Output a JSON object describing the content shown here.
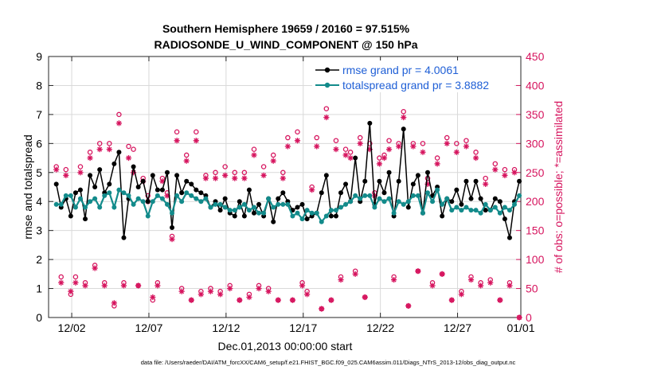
{
  "chart_data": {
    "type": "line",
    "title": "Southern Hemisphere 19659 / 20160 = 97.515%",
    "subtitle": "RADIOSONDE_U_WIND_COMPONENT @ 150 hPa",
    "xlabel": "Dec.01,2013 00:00:00 start",
    "ylabel_left": "rmse and totalspread",
    "ylabel_right": "# of obs: o=possible; *=assimilated",
    "footer": "data file: /Users/raeder/DAI/ATM_forcXX/CAM6_setup/f.e21.FHIST_BGC.f09_025.CAM6assim.011/Diags_NTrS_2013-12/obs_diag_output.nc",
    "xlim": [
      0.5,
      31.1
    ],
    "ylim_left": [
      0,
      9
    ],
    "ylim_right": [
      0,
      450
    ],
    "x_tick_values": [
      2,
      7,
      12,
      17,
      22,
      27,
      32
    ],
    "x_tick_labels": [
      "12/02",
      "12/07",
      "12/12",
      "12/17",
      "12/22",
      "12/27",
      "01/01"
    ],
    "y_left_ticks": [
      0,
      1,
      2,
      3,
      4,
      5,
      6,
      7,
      8,
      9
    ],
    "y_right_ticks": [
      0,
      50,
      100,
      150,
      200,
      250,
      300,
      350,
      400,
      450
    ],
    "series": [
      {
        "name": "rmse grand pr = 4.0061",
        "axis": "left",
        "color": "#000000",
        "marker": "filled-circle",
        "values": [
          4.6,
          3.8,
          4.1,
          3.5,
          4.3,
          4.4,
          3.4,
          4.9,
          4.5,
          5.1,
          4.3,
          4.6,
          5.3,
          5.7,
          2.75,
          4.1,
          5.2,
          4.5,
          4.7,
          4.0,
          4.9,
          4.4,
          4.4,
          5.0,
          3.1,
          4.9,
          4.3,
          4.7,
          4.6,
          4.4,
          4.3,
          4.2,
          3.8,
          4.0,
          3.7,
          4.1,
          3.6,
          3.5,
          4.0,
          3.5,
          4.4,
          3.6,
          3.9,
          3.5,
          4.1,
          3.3,
          4.1,
          4.3,
          4.0,
          3.7,
          3.8,
          3.9,
          3.4,
          3.5,
          3.6,
          4.3,
          4.9,
          3.5,
          3.5,
          4.3,
          4.6,
          4.0,
          5.5,
          4.0,
          4.7,
          6.7,
          3.9,
          4.7,
          4.3,
          5.0,
          3.5,
          4.7,
          6.5,
          3.8,
          4.6,
          4.9,
          3.6,
          5.0,
          4.2,
          4.5,
          3.5,
          4.1,
          4.0,
          4.4,
          3.9,
          4.7,
          4.1,
          4.7,
          4.1,
          3.7,
          3.7,
          4.1,
          4.0,
          3.4,
          2.75,
          4.0,
          4.7
        ]
      },
      {
        "name": "totalspread grand pr = 3.8882",
        "axis": "left",
        "color": "#138b8b",
        "marker": "filled-circle",
        "values": [
          3.9,
          3.9,
          4.2,
          4.2,
          3.8,
          4.1,
          3.8,
          4.0,
          4.1,
          3.8,
          4.2,
          4.3,
          3.8,
          4.4,
          4.3,
          4.2,
          3.9,
          4.1,
          4.0,
          3.5,
          4.0,
          4.2,
          4.1,
          3.9,
          3.6,
          4.2,
          4.0,
          4.3,
          4.2,
          4.1,
          4.0,
          4.1,
          3.8,
          3.9,
          3.9,
          3.8,
          3.7,
          3.7,
          3.8,
          3.9,
          3.7,
          3.8,
          3.6,
          3.6,
          4.1,
          3.8,
          3.9,
          3.9,
          3.9,
          3.5,
          3.6,
          3.4,
          3.7,
          3.6,
          3.6,
          3.3,
          3.5,
          3.7,
          3.7,
          3.8,
          3.9,
          4.0,
          4.2,
          4.1,
          4.2,
          4.2,
          3.8,
          4.1,
          4.0,
          4.1,
          3.6,
          4.0,
          3.9,
          4.0,
          4.2,
          4.2,
          3.6,
          4.3,
          4.0,
          4.4,
          3.9,
          4.1,
          3.7,
          3.8,
          3.7,
          3.8,
          3.7,
          3.7,
          3.6,
          3.9,
          3.7,
          3.8,
          3.6,
          3.8,
          3.7,
          3.9,
          4.2
        ]
      },
      {
        "name": "possible",
        "axis": "right",
        "color": "#d6145e",
        "marker": "circle",
        "values": [
          260,
          70,
          255,
          40,
          70,
          260,
          60,
          285,
          90,
          300,
          60,
          300,
          20,
          350,
          60,
          295,
          290,
          55,
          240,
          210,
          30,
          60,
          240,
          215,
          140,
          320,
          50,
          280,
          30,
          320,
          45,
          245,
          50,
          250,
          45,
          260,
          55,
          250,
          30,
          250,
          40,
          290,
          55,
          260,
          50,
          280,
          30,
          250,
          310,
          30,
          320,
          60,
          45,
          225,
          310,
          15,
          360,
          30,
          305,
          70,
          290,
          285,
          80,
          310,
          35,
          300,
          215,
          275,
          280,
          305,
          70,
          300,
          355,
          20,
          300,
          80,
          300,
          240,
          60,
          275,
          75,
          310,
          30,
          300,
          45,
          305,
          70,
          285,
          60,
          240,
          65,
          265,
          30,
          255,
          60,
          255,
          0
        ]
      },
      {
        "name": "assimilated",
        "axis": "right",
        "color": "#d6145e",
        "marker": "asterisk",
        "values": [
          255,
          60,
          245,
          45,
          60,
          250,
          55,
          275,
          85,
          290,
          55,
          290,
          25,
          335,
          55,
          275,
          250,
          55,
          235,
          200,
          35,
          55,
          235,
          210,
          135,
          305,
          45,
          270,
          30,
          305,
          40,
          240,
          45,
          240,
          40,
          245,
          50,
          240,
          30,
          240,
          35,
          280,
          50,
          245,
          45,
          270,
          30,
          240,
          295,
          30,
          305,
          55,
          40,
          220,
          295,
          15,
          345,
          30,
          290,
          65,
          280,
          275,
          75,
          300,
          35,
          290,
          210,
          265,
          275,
          290,
          65,
          295,
          345,
          20,
          295,
          80,
          285,
          230,
          55,
          265,
          75,
          300,
          30,
          285,
          40,
          295,
          65,
          275,
          55,
          230,
          60,
          255,
          30,
          245,
          55,
          250,
          0
        ]
      }
    ]
  }
}
